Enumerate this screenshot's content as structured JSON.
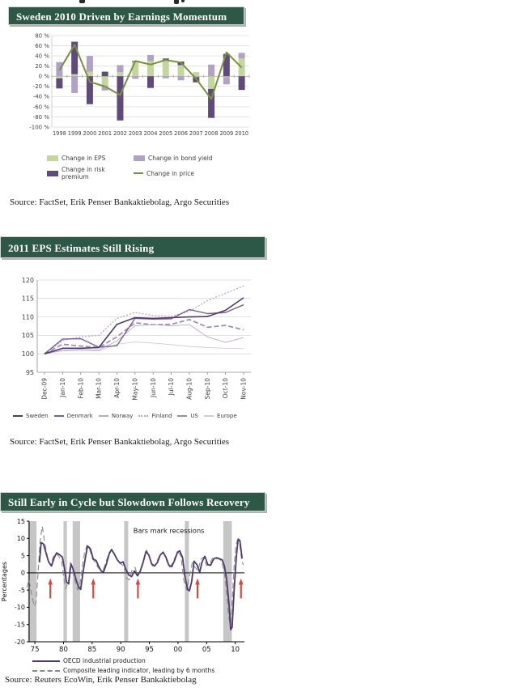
{
  "page": {
    "background": "#ffffff",
    "header_bg": "#2D5848",
    "header_text_color": "#ffffff"
  },
  "chart_data": [
    {
      "type": "bar",
      "subtype": "stacked-bar-with-line",
      "title": "Sweden 2010 Driven by Earnings Momentum",
      "source": "Source: FactSet, Erik Penser Bankaktiebolag, Argo Securities",
      "categories": [
        "1998",
        "1999",
        "2000",
        "2001",
        "2002",
        "2003",
        "2004",
        "2005",
        "2006",
        "2007",
        "2008",
        "2009",
        "2010"
      ],
      "ylim": [
        -100,
        80
      ],
      "ytick_step": 20,
      "ytick_suffix": " %",
      "grid": true,
      "legend_position": "bottom",
      "series": [
        {
          "name": "Change in EPS",
          "type": "bar",
          "swatch": "box",
          "color": "#C3D69B",
          "values": [
            -4,
            4,
            9,
            -20,
            8,
            28,
            30,
            33,
            22,
            8,
            -25,
            -2,
            35
          ]
        },
        {
          "name": "Change in bond yield",
          "type": "bar",
          "swatch": "box",
          "color": "#B2A1C7",
          "values": [
            28,
            -33,
            31,
            -8,
            14,
            -5,
            12,
            -4,
            -8,
            -2,
            23,
            -14,
            11
          ]
        },
        {
          "name": "Change in risk premium",
          "type": "bar",
          "swatch": "box",
          "color": "#604A7B",
          "values": [
            -20,
            64,
            -55,
            9,
            -87,
            2,
            -23,
            2,
            7,
            -10,
            -57,
            44,
            -27
          ]
        },
        {
          "name": "Change in price",
          "type": "line",
          "swatch": "line",
          "color": "#77933C",
          "values": [
            12,
            62,
            -11,
            -20,
            -37,
            30,
            23,
            32,
            27,
            -5,
            -45,
            47,
            17
          ]
        }
      ]
    },
    {
      "type": "line",
      "title": "2011 EPS Estimates Still Rising",
      "source": "Source: FactSet, Erik Penser Bankaktiebolag, Argo Securities",
      "x": [
        "Dec-09",
        "Jan-10",
        "Feb-10",
        "Mar-10",
        "Apr-10",
        "May-10",
        "Jun-10",
        "Jul-10",
        "Aug-10",
        "Sep-10",
        "Oct-10",
        "Nov-10"
      ],
      "ylim": [
        95,
        120
      ],
      "ytick_step": 5,
      "grid": true,
      "legend_position": "bottom",
      "series": [
        {
          "name": "Sweden",
          "swatch": "line",
          "color": "#4F3A6B",
          "width": 1.6,
          "values": [
            100,
            101.5,
            101.5,
            101.7,
            108,
            109.8,
            109.6,
            109.8,
            110,
            110.1,
            111.8,
            115.2
          ]
        },
        {
          "name": "Denmark",
          "swatch": "line",
          "color": "#7A5F9C",
          "width": 1.4,
          "values": [
            100,
            104,
            104.1,
            101.8,
            102.2,
            109.6,
            109.4,
            109.5,
            112,
            110.9,
            111.2,
            113.3
          ]
        },
        {
          "name": "Norway",
          "swatch": "line",
          "color": "#B9A8CD",
          "width": 0.9,
          "values": [
            100,
            101,
            101.2,
            101,
            103.5,
            107.6,
            107.9,
            107.6,
            107.9,
            104.6,
            103.1,
            104.4
          ]
        },
        {
          "name": "Finland",
          "swatch": "dot",
          "color": "#BFA3C9",
          "width": 1.3,
          "dash": "2,2",
          "values": [
            100,
            103.6,
            104.6,
            105,
            109.6,
            111.2,
            110.4,
            110.2,
            111.5,
            114.4,
            116.4,
            118.4
          ]
        },
        {
          "name": "US",
          "swatch": "dash",
          "color": "#9E87B8",
          "width": 1.7,
          "dash": "6,3",
          "values": [
            100,
            102.6,
            102.1,
            101.7,
            104.6,
            108.4,
            107.9,
            108,
            109.3,
            107.2,
            107.7,
            106.5
          ]
        },
        {
          "name": "Europe",
          "swatch": "line",
          "color": "#D3C8E0",
          "width": 0.9,
          "values": [
            100,
            100.8,
            100.9,
            100.8,
            102.6,
            103.2,
            102.9,
            102.5,
            102,
            101.7,
            101.5,
            101.4
          ]
        }
      ]
    },
    {
      "type": "line",
      "title": "Still Early in Cycle but Slowdown Follows Recovery",
      "source": "Source: Reuters EcoWin, Erik Penser Bankaktiebolag",
      "ylabel": "Percentages",
      "annotation": "Bars mark recessions",
      "annotation_x": 1998.4,
      "annotation_y": 11.6,
      "xlim": [
        1974,
        2011.6
      ],
      "ylim": [
        -20,
        15
      ],
      "ytick_step": 5,
      "xticks": [
        {
          "v": 1975,
          "label": "75"
        },
        {
          "v": 1980,
          "label": "80"
        },
        {
          "v": 1985,
          "label": "85"
        },
        {
          "v": 1990,
          "label": "90"
        },
        {
          "v": 1995,
          "label": "95"
        },
        {
          "v": 2000,
          "label": "00"
        },
        {
          "v": 2005,
          "label": "05"
        },
        {
          "v": 2010,
          "label": "10"
        }
      ],
      "recessions": [
        [
          1973.8,
          1975.3
        ],
        [
          1980.0,
          1980.6
        ],
        [
          1981.6,
          1982.9
        ],
        [
          1990.6,
          1991.3
        ],
        [
          2001.2,
          2001.9
        ],
        [
          2007.9,
          2009.4
        ]
      ],
      "recession_color": "#C6C6C6",
      "arrow_color": "#D9493C",
      "arrows_x": [
        1977.7,
        1985.2,
        1993.0,
        2003.4,
        2011.0
      ],
      "series": [
        {
          "name": "OECD industrial production",
          "swatch": "line",
          "color": "#4E3A70",
          "width": 1.8,
          "points": [
            [
              1975.8,
              3
            ],
            [
              1976.1,
              8.8
            ],
            [
              1976.5,
              8.4
            ],
            [
              1977,
              5.5
            ],
            [
              1977.4,
              3.2
            ],
            [
              1977.9,
              2
            ],
            [
              1978.4,
              4.5
            ],
            [
              1978.8,
              5.8
            ],
            [
              1979.3,
              5.3
            ],
            [
              1979.8,
              4.6
            ],
            [
              1980.2,
              1
            ],
            [
              1980.5,
              -2.6
            ],
            [
              1980.9,
              -3.2
            ],
            [
              1981.3,
              2.6
            ],
            [
              1981.7,
              1
            ],
            [
              1982.2,
              -2
            ],
            [
              1982.6,
              -4
            ],
            [
              1983,
              -4.8
            ],
            [
              1983.4,
              0
            ],
            [
              1983.8,
              4.2
            ],
            [
              1984.2,
              7.8
            ],
            [
              1984.7,
              7
            ],
            [
              1985.2,
              4
            ],
            [
              1985.7,
              3.6
            ],
            [
              1986.1,
              2
            ],
            [
              1986.6,
              0.5
            ],
            [
              1987,
              0.3
            ],
            [
              1987.5,
              2.6
            ],
            [
              1988,
              5.6
            ],
            [
              1988.4,
              6.8
            ],
            [
              1988.9,
              5.4
            ],
            [
              1989.4,
              3.8
            ],
            [
              1989.9,
              2.8
            ],
            [
              1990.4,
              3.2
            ],
            [
              1990.9,
              1
            ],
            [
              1991.4,
              -0.6
            ],
            [
              1991.9,
              -1.1
            ],
            [
              1992.4,
              0.6
            ],
            [
              1992.9,
              -0.8
            ],
            [
              1993.4,
              0.5
            ],
            [
              1993.9,
              3
            ],
            [
              1994.4,
              6.2
            ],
            [
              1994.9,
              5.2
            ],
            [
              1995.4,
              2.6
            ],
            [
              1995.9,
              2
            ],
            [
              1996.4,
              3
            ],
            [
              1996.9,
              5.2
            ],
            [
              1997.4,
              6
            ],
            [
              1997.9,
              4.5
            ],
            [
              1998.4,
              2.2
            ],
            [
              1998.9,
              1.8
            ],
            [
              1999.4,
              3.6
            ],
            [
              1999.9,
              6
            ],
            [
              2000.3,
              6.4
            ],
            [
              2000.8,
              4.4
            ],
            [
              2001.2,
              -1
            ],
            [
              2001.7,
              -4.9
            ],
            [
              2002,
              -5.2
            ],
            [
              2002.4,
              -2.4
            ],
            [
              2002.8,
              3.4
            ],
            [
              2003.3,
              2.4
            ],
            [
              2003.8,
              0.2
            ],
            [
              2004.2,
              3.2
            ],
            [
              2004.7,
              4.8
            ],
            [
              2005.2,
              2.4
            ],
            [
              2005.7,
              2.2
            ],
            [
              2006.2,
              4
            ],
            [
              2006.7,
              4.4
            ],
            [
              2007.2,
              4.1
            ],
            [
              2007.7,
              3.8
            ],
            [
              2008.1,
              2
            ],
            [
              2008.5,
              -2
            ],
            [
              2008.9,
              -9
            ],
            [
              2009.2,
              -16.5
            ],
            [
              2009.45,
              -15.8
            ],
            [
              2009.8,
              -5
            ],
            [
              2010.2,
              5
            ],
            [
              2010.5,
              9.8
            ],
            [
              2010.8,
              9.4
            ],
            [
              2011.2,
              4.2
            ]
          ]
        },
        {
          "name": "Composite leading indicator, leading by 6 months",
          "swatch": "dash",
          "color": "#8A8A8A",
          "width": 1.1,
          "dash": "7,4",
          "points": [
            [
              1973.6,
              -4.2
            ],
            [
              1974,
              -2
            ],
            [
              1974.4,
              -6
            ],
            [
              1974.9,
              -9.7
            ],
            [
              1975.2,
              -8.5
            ],
            [
              1975.6,
              1
            ],
            [
              1975.9,
              9
            ],
            [
              1976.3,
              13.5
            ],
            [
              1976.7,
              9
            ],
            [
              1977.2,
              4.5
            ],
            [
              1977.7,
              2.2
            ],
            [
              1978.2,
              4.6
            ],
            [
              1978.7,
              5.6
            ],
            [
              1979.2,
              4.8
            ],
            [
              1979.7,
              3
            ],
            [
              1980.1,
              -2
            ],
            [
              1980.4,
              -4.6
            ],
            [
              1980.9,
              -2
            ],
            [
              1981.2,
              3
            ],
            [
              1981.6,
              1
            ],
            [
              1982.1,
              -3
            ],
            [
              1982.5,
              -5
            ],
            [
              1982.9,
              -3
            ],
            [
              1983.3,
              2.2
            ],
            [
              1983.7,
              6
            ],
            [
              1984.1,
              8
            ],
            [
              1984.6,
              6.6
            ],
            [
              1985.1,
              4
            ],
            [
              1985.6,
              3
            ],
            [
              1986,
              1.6
            ],
            [
              1986.5,
              0.8
            ],
            [
              1987,
              1.1
            ],
            [
              1987.5,
              3.6
            ],
            [
              1988,
              6
            ],
            [
              1988.5,
              6.6
            ],
            [
              1989,
              5
            ],
            [
              1989.5,
              3.6
            ],
            [
              1990,
              2.6
            ],
            [
              1990.5,
              2
            ],
            [
              1991,
              -1.6
            ],
            [
              1991.5,
              -2
            ],
            [
              1992,
              1
            ],
            [
              1992.5,
              1.6
            ],
            [
              1993,
              -1
            ],
            [
              1993.5,
              1.1
            ],
            [
              1994,
              4
            ],
            [
              1994.5,
              6.6
            ],
            [
              1995,
              4.6
            ],
            [
              1995.5,
              2
            ],
            [
              1996,
              2.2
            ],
            [
              1996.5,
              4
            ],
            [
              1997,
              5.6
            ],
            [
              1997.5,
              5.8
            ],
            [
              1998,
              3.6
            ],
            [
              1998.5,
              1.6
            ],
            [
              1999,
              2.6
            ],
            [
              1999.5,
              4.6
            ],
            [
              2000,
              6
            ],
            [
              2000.5,
              5
            ],
            [
              2001,
              -2
            ],
            [
              2001.5,
              -5
            ],
            [
              2002,
              -1
            ],
            [
              2002.5,
              3
            ],
            [
              2003,
              1.6
            ],
            [
              2003.5,
              0.6
            ],
            [
              2004,
              4
            ],
            [
              2004.5,
              4.6
            ],
            [
              2005,
              2.1
            ],
            [
              2005.5,
              2.6
            ],
            [
              2006,
              4.2
            ],
            [
              2006.5,
              4
            ],
            [
              2007,
              4.2
            ],
            [
              2007.5,
              3.6
            ],
            [
              2008,
              1
            ],
            [
              2008.4,
              -4
            ],
            [
              2008.8,
              -12
            ],
            [
              2009.1,
              -15
            ],
            [
              2009.4,
              -10
            ],
            [
              2009.8,
              2
            ],
            [
              2010.1,
              8
            ],
            [
              2010.4,
              9.5
            ],
            [
              2010.8,
              8
            ],
            [
              2011.1,
              4
            ],
            [
              2011.4,
              2.3
            ]
          ]
        }
      ]
    }
  ]
}
